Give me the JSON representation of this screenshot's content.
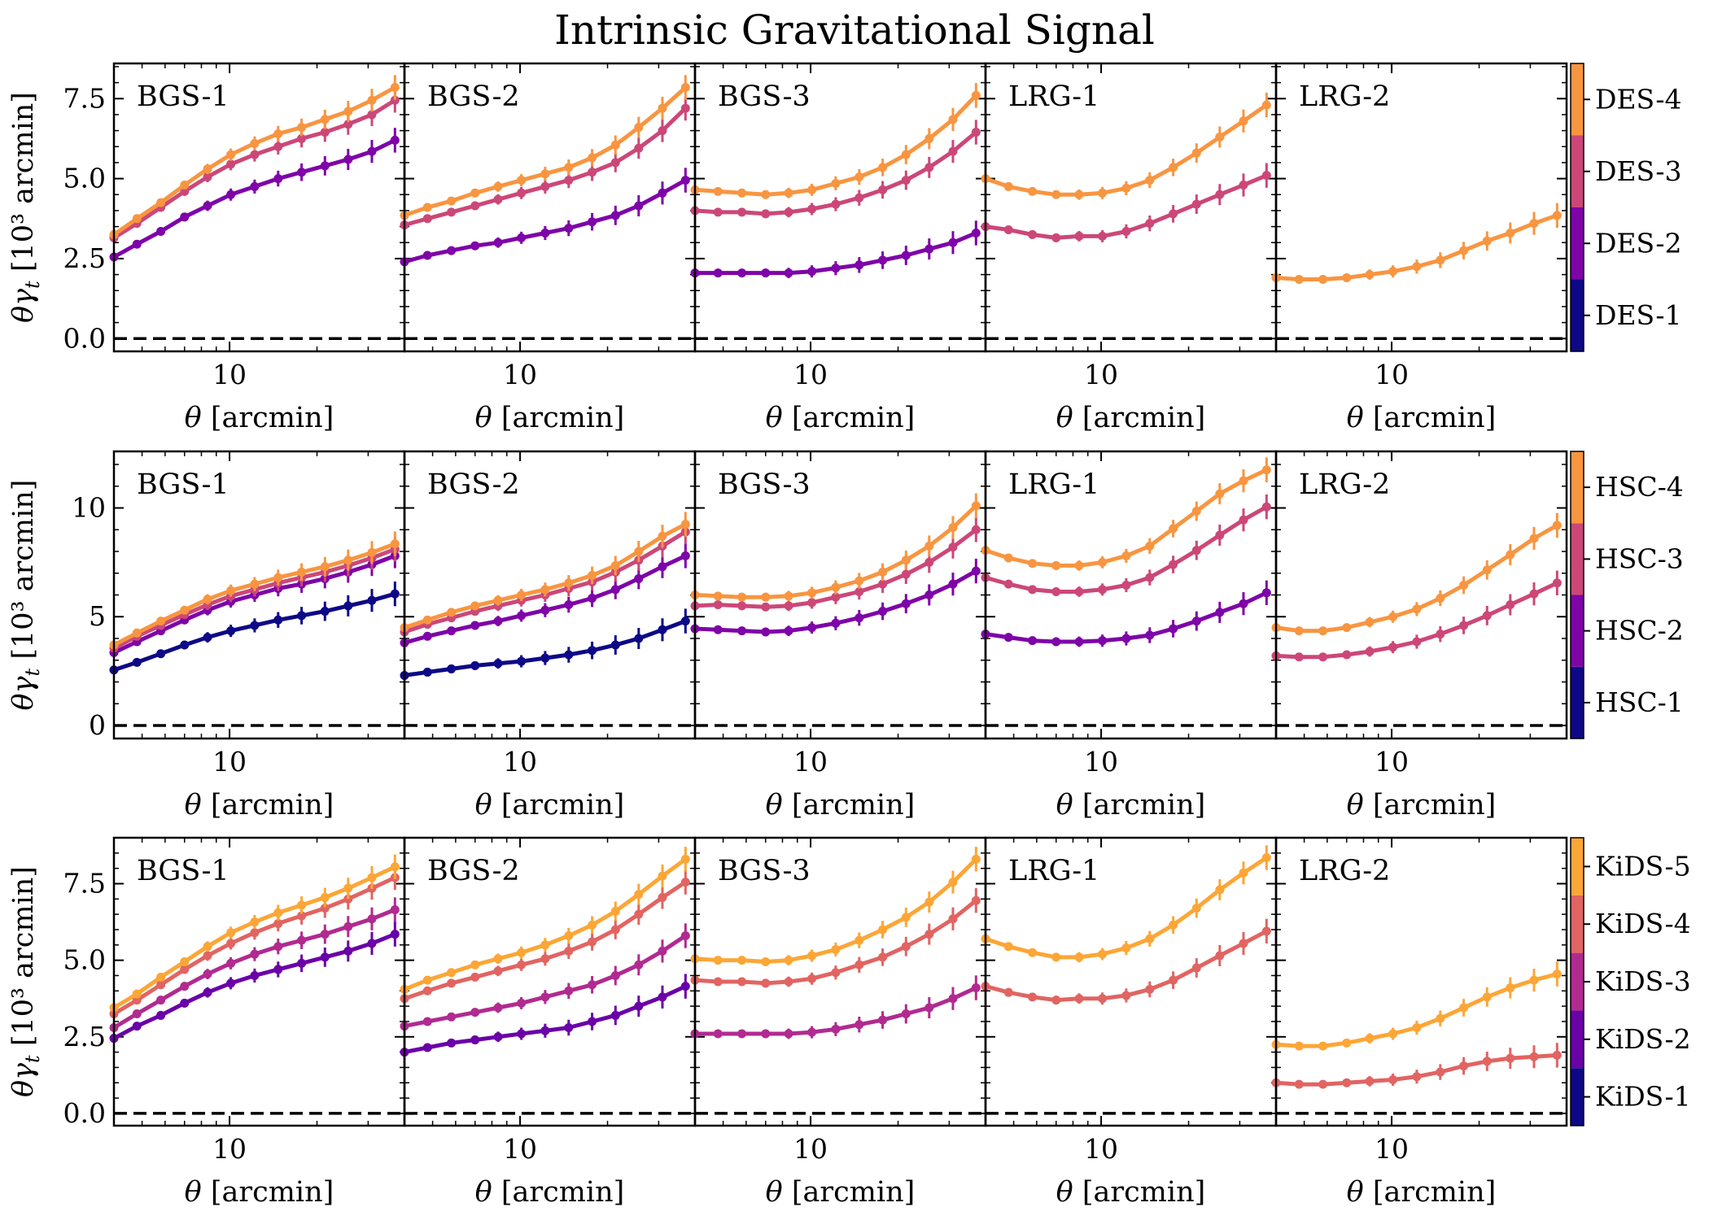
{
  "title": "Intrinsic Gravitational Signal",
  "x_axis_label": "θ [arcmin]",
  "y_axis_label": "θγt [10³ arcmin]",
  "lens_labels": [
    "BGS-1",
    "BGS-2",
    "BGS-3",
    "LRG-1",
    "LRG-2"
  ],
  "x_tick_label": "10",
  "rows": [
    {
      "ylim": [
        -0.4,
        8.6
      ],
      "yticks": [
        0.0,
        2.5,
        5.0,
        7.5
      ],
      "ytick_labels": [
        "0.0",
        "2.5",
        "5.0",
        "7.5"
      ],
      "colorbar": {
        "labels": [
          "DES-1",
          "DES-2",
          "DES-3",
          "DES-4"
        ],
        "colors": [
          "#0d0887",
          "#7e03a8",
          "#cc4778",
          "#f89540"
        ]
      }
    },
    {
      "ylim": [
        -0.6,
        12.6
      ],
      "yticks": [
        0,
        5,
        10
      ],
      "ytick_labels": [
        "0",
        "5",
        "10"
      ],
      "colorbar": {
        "labels": [
          "HSC-1",
          "HSC-2",
          "HSC-3",
          "HSC-4"
        ],
        "colors": [
          "#0d0887",
          "#7e03a8",
          "#cc4778",
          "#f89540"
        ]
      }
    },
    {
      "ylim": [
        -0.4,
        9.0
      ],
      "yticks": [
        0.0,
        2.5,
        5.0,
        7.5
      ],
      "ytick_labels": [
        "0.0",
        "2.5",
        "5.0",
        "7.5"
      ],
      "colorbar": {
        "labels": [
          "KiDS-1",
          "KiDS-2",
          "KiDS-3",
          "KiDS-4",
          "KiDS-5"
        ],
        "colors": [
          "#0d0887",
          "#6a00a8",
          "#b12a90",
          "#e16462",
          "#fca636"
        ]
      }
    }
  ],
  "chart_data": {
    "type": "line",
    "xscale": "log",
    "xlim": [
      4.0,
      40.0
    ],
    "x": [
      4.0,
      4.8,
      5.8,
      7.0,
      8.4,
      10.1,
      12.2,
      14.7,
      17.7,
      21.3,
      25.6,
      30.9,
      37.1
    ],
    "reference_line": {
      "y": 0,
      "style": "dashed",
      "color": "#000000"
    },
    "panels": [
      {
        "row": 0,
        "col": 0,
        "lens": "BGS-1",
        "series": [
          {
            "name": "DES-2",
            "color": "#7e03a8",
            "values": [
              2.55,
              2.95,
              3.35,
              3.8,
              4.15,
              4.5,
              4.75,
              5.0,
              5.2,
              5.4,
              5.6,
              5.85,
              6.2
            ]
          },
          {
            "name": "DES-3",
            "color": "#cc4778",
            "values": [
              3.15,
              3.6,
              4.1,
              4.6,
              5.05,
              5.45,
              5.75,
              6.0,
              6.25,
              6.45,
              6.7,
              7.0,
              7.45
            ]
          },
          {
            "name": "DES-4",
            "color": "#f89540",
            "values": [
              3.25,
              3.75,
              4.25,
              4.8,
              5.3,
              5.75,
              6.1,
              6.4,
              6.6,
              6.85,
              7.1,
              7.45,
              7.85
            ]
          }
        ]
      },
      {
        "row": 0,
        "col": 1,
        "lens": "BGS-2",
        "series": [
          {
            "name": "DES-2",
            "color": "#7e03a8",
            "values": [
              2.4,
              2.6,
              2.75,
              2.9,
              3.0,
              3.15,
              3.3,
              3.45,
              3.65,
              3.85,
              4.15,
              4.55,
              4.95
            ]
          },
          {
            "name": "DES-3",
            "color": "#cc4778",
            "values": [
              3.55,
              3.75,
              3.95,
              4.15,
              4.35,
              4.55,
              4.75,
              4.95,
              5.2,
              5.5,
              5.95,
              6.5,
              7.2
            ]
          },
          {
            "name": "DES-4",
            "color": "#f89540",
            "values": [
              3.85,
              4.1,
              4.3,
              4.55,
              4.75,
              4.95,
              5.15,
              5.35,
              5.65,
              6.05,
              6.6,
              7.2,
              7.85
            ]
          }
        ]
      },
      {
        "row": 0,
        "col": 2,
        "lens": "BGS-3",
        "series": [
          {
            "name": "DES-2",
            "color": "#7e03a8",
            "values": [
              2.05,
              2.05,
              2.05,
              2.05,
              2.05,
              2.1,
              2.2,
              2.3,
              2.45,
              2.6,
              2.8,
              3.0,
              3.3
            ]
          },
          {
            "name": "DES-3",
            "color": "#cc4778",
            "values": [
              4.0,
              3.95,
              3.95,
              3.9,
              3.95,
              4.05,
              4.2,
              4.4,
              4.65,
              4.95,
              5.35,
              5.85,
              6.45
            ]
          },
          {
            "name": "DES-4",
            "color": "#f89540",
            "values": [
              4.65,
              4.6,
              4.55,
              4.5,
              4.55,
              4.65,
              4.85,
              5.05,
              5.35,
              5.75,
              6.25,
              6.85,
              7.6
            ]
          }
        ]
      },
      {
        "row": 0,
        "col": 3,
        "lens": "LRG-1",
        "series": [
          {
            "name": "DES-3",
            "color": "#cc4778",
            "values": [
              3.5,
              3.4,
              3.25,
              3.15,
              3.2,
              3.2,
              3.35,
              3.6,
              3.9,
              4.2,
              4.5,
              4.8,
              5.1
            ]
          },
          {
            "name": "DES-4",
            "color": "#f89540",
            "values": [
              5.0,
              4.75,
              4.6,
              4.5,
              4.5,
              4.55,
              4.7,
              4.95,
              5.35,
              5.8,
              6.3,
              6.8,
              7.3
            ]
          }
        ]
      },
      {
        "row": 0,
        "col": 4,
        "lens": "LRG-2",
        "series": [
          {
            "name": "DES-4",
            "color": "#f89540",
            "values": [
              1.9,
              1.85,
              1.85,
              1.9,
              2.0,
              2.1,
              2.25,
              2.45,
              2.75,
              3.05,
              3.3,
              3.6,
              3.85
            ]
          }
        ]
      },
      {
        "row": 1,
        "col": 0,
        "lens": "BGS-1",
        "series": [
          {
            "name": "HSC-1",
            "color": "#0d0887",
            "values": [
              2.55,
              2.9,
              3.3,
              3.7,
              4.05,
              4.35,
              4.6,
              4.85,
              5.05,
              5.25,
              5.5,
              5.75,
              6.05
            ]
          },
          {
            "name": "HSC-2",
            "color": "#7e03a8",
            "values": [
              3.35,
              3.85,
              4.35,
              4.85,
              5.3,
              5.7,
              6.0,
              6.3,
              6.5,
              6.75,
              7.05,
              7.4,
              7.8
            ]
          },
          {
            "name": "HSC-3",
            "color": "#cc4778",
            "values": [
              3.55,
              4.1,
              4.6,
              5.1,
              5.55,
              5.95,
              6.25,
              6.55,
              6.8,
              7.05,
              7.35,
              7.7,
              8.1
            ]
          },
          {
            "name": "HSC-4",
            "color": "#f89540",
            "values": [
              3.7,
              4.25,
              4.8,
              5.3,
              5.8,
              6.2,
              6.5,
              6.8,
              7.05,
              7.3,
              7.6,
              7.95,
              8.35
            ]
          }
        ]
      },
      {
        "row": 1,
        "col": 1,
        "lens": "BGS-2",
        "series": [
          {
            "name": "HSC-1",
            "color": "#0d0887",
            "values": [
              2.3,
              2.45,
              2.6,
              2.75,
              2.85,
              2.95,
              3.1,
              3.25,
              3.45,
              3.7,
              4.0,
              4.4,
              4.8
            ]
          },
          {
            "name": "HSC-2",
            "color": "#7e03a8",
            "values": [
              3.8,
              4.1,
              4.35,
              4.6,
              4.8,
              5.05,
              5.3,
              5.55,
              5.85,
              6.25,
              6.75,
              7.3,
              7.8
            ]
          },
          {
            "name": "HSC-3",
            "color": "#cc4778",
            "values": [
              4.3,
              4.65,
              4.95,
              5.25,
              5.5,
              5.75,
              6.0,
              6.3,
              6.6,
              7.05,
              7.6,
              8.25,
              8.9
            ]
          },
          {
            "name": "HSC-4",
            "color": "#f89540",
            "values": [
              4.5,
              4.85,
              5.2,
              5.5,
              5.75,
              6.0,
              6.25,
              6.55,
              6.9,
              7.35,
              8.0,
              8.7,
              9.25
            ]
          }
        ]
      },
      {
        "row": 1,
        "col": 2,
        "lens": "BGS-3",
        "series": [
          {
            "name": "HSC-2",
            "color": "#7e03a8",
            "values": [
              4.45,
              4.4,
              4.35,
              4.3,
              4.35,
              4.5,
              4.7,
              4.95,
              5.25,
              5.6,
              6.0,
              6.5,
              7.1
            ]
          },
          {
            "name": "HSC-3",
            "color": "#cc4778",
            "values": [
              5.5,
              5.55,
              5.5,
              5.45,
              5.5,
              5.65,
              5.9,
              6.15,
              6.5,
              6.95,
              7.5,
              8.2,
              9.0
            ]
          },
          {
            "name": "HSC-4",
            "color": "#f89540",
            "values": [
              6.0,
              5.95,
              5.9,
              5.9,
              5.95,
              6.1,
              6.35,
              6.65,
              7.05,
              7.6,
              8.25,
              9.1,
              10.1
            ]
          }
        ]
      },
      {
        "row": 1,
        "col": 3,
        "lens": "LRG-1",
        "series": [
          {
            "name": "HSC-2",
            "color": "#7e03a8",
            "values": [
              4.2,
              4.05,
              3.9,
              3.85,
              3.85,
              3.9,
              4.0,
              4.15,
              4.45,
              4.8,
              5.2,
              5.6,
              6.1
            ]
          },
          {
            "name": "HSC-3",
            "color": "#cc4778",
            "values": [
              6.8,
              6.5,
              6.25,
              6.15,
              6.15,
              6.25,
              6.45,
              6.8,
              7.4,
              8.05,
              8.75,
              9.45,
              10.05
            ]
          },
          {
            "name": "HSC-4",
            "color": "#f89540",
            "values": [
              8.05,
              7.7,
              7.45,
              7.35,
              7.35,
              7.5,
              7.8,
              8.25,
              9.05,
              9.85,
              10.65,
              11.25,
              11.75
            ]
          }
        ]
      },
      {
        "row": 1,
        "col": 4,
        "lens": "LRG-2",
        "series": [
          {
            "name": "HSC-3",
            "color": "#cc4778",
            "values": [
              3.2,
              3.15,
              3.15,
              3.25,
              3.4,
              3.6,
              3.85,
              4.2,
              4.6,
              5.05,
              5.55,
              6.05,
              6.55
            ]
          },
          {
            "name": "HSC-4",
            "color": "#f89540",
            "values": [
              4.5,
              4.35,
              4.35,
              4.5,
              4.75,
              5.0,
              5.35,
              5.85,
              6.45,
              7.15,
              7.85,
              8.6,
              9.2
            ]
          }
        ]
      },
      {
        "row": 2,
        "col": 0,
        "lens": "BGS-1",
        "series": [
          {
            "name": "KiDS-2",
            "color": "#6a00a8",
            "values": [
              2.45,
              2.85,
              3.2,
              3.6,
              3.95,
              4.25,
              4.5,
              4.7,
              4.9,
              5.1,
              5.3,
              5.55,
              5.85
            ]
          },
          {
            "name": "KiDS-3",
            "color": "#b12a90",
            "values": [
              2.8,
              3.25,
              3.7,
              4.15,
              4.55,
              4.9,
              5.2,
              5.45,
              5.65,
              5.85,
              6.1,
              6.35,
              6.65
            ]
          },
          {
            "name": "KiDS-4",
            "color": "#e16462",
            "values": [
              3.25,
              3.7,
              4.2,
              4.7,
              5.15,
              5.55,
              5.9,
              6.2,
              6.45,
              6.7,
              7.0,
              7.35,
              7.7
            ]
          },
          {
            "name": "KiDS-5",
            "color": "#fca636",
            "values": [
              3.45,
              3.9,
              4.45,
              4.95,
              5.45,
              5.9,
              6.25,
              6.55,
              6.8,
              7.05,
              7.35,
              7.7,
              8.05
            ]
          }
        ]
      },
      {
        "row": 2,
        "col": 1,
        "lens": "BGS-2",
        "series": [
          {
            "name": "KiDS-2",
            "color": "#6a00a8",
            "values": [
              2.0,
              2.15,
              2.3,
              2.4,
              2.5,
              2.6,
              2.7,
              2.8,
              3.0,
              3.2,
              3.5,
              3.8,
              4.15
            ]
          },
          {
            "name": "KiDS-3",
            "color": "#b12a90",
            "values": [
              2.85,
              3.0,
              3.15,
              3.3,
              3.45,
              3.6,
              3.8,
              4.0,
              4.2,
              4.5,
              4.85,
              5.3,
              5.8
            ]
          },
          {
            "name": "KiDS-4",
            "color": "#e16462",
            "values": [
              3.75,
              4.0,
              4.25,
              4.45,
              4.65,
              4.85,
              5.05,
              5.3,
              5.6,
              6.0,
              6.5,
              7.05,
              7.55
            ]
          },
          {
            "name": "KiDS-5",
            "color": "#fca636",
            "values": [
              4.05,
              4.35,
              4.6,
              4.85,
              5.05,
              5.25,
              5.5,
              5.8,
              6.15,
              6.6,
              7.15,
              7.75,
              8.3
            ]
          }
        ]
      },
      {
        "row": 2,
        "col": 2,
        "lens": "BGS-3",
        "series": [
          {
            "name": "KiDS-3",
            "color": "#b12a90",
            "values": [
              2.6,
              2.6,
              2.6,
              2.6,
              2.6,
              2.65,
              2.75,
              2.9,
              3.05,
              3.25,
              3.45,
              3.75,
              4.1
            ]
          },
          {
            "name": "KiDS-4",
            "color": "#e16462",
            "values": [
              4.35,
              4.3,
              4.3,
              4.25,
              4.3,
              4.4,
              4.6,
              4.85,
              5.1,
              5.45,
              5.85,
              6.35,
              6.95
            ]
          },
          {
            "name": "KiDS-5",
            "color": "#fca636",
            "values": [
              5.05,
              5.0,
              5.0,
              4.95,
              5.0,
              5.15,
              5.35,
              5.65,
              6.0,
              6.4,
              6.9,
              7.55,
              8.3
            ]
          }
        ]
      },
      {
        "row": 2,
        "col": 3,
        "lens": "LRG-1",
        "series": [
          {
            "name": "KiDS-4",
            "color": "#e16462",
            "values": [
              4.15,
              3.95,
              3.8,
              3.7,
              3.75,
              3.75,
              3.85,
              4.05,
              4.35,
              4.75,
              5.15,
              5.55,
              5.95
            ]
          },
          {
            "name": "KiDS-5",
            "color": "#fca636",
            "values": [
              5.7,
              5.45,
              5.25,
              5.1,
              5.1,
              5.2,
              5.4,
              5.7,
              6.15,
              6.7,
              7.3,
              7.85,
              8.35
            ]
          }
        ]
      },
      {
        "row": 2,
        "col": 4,
        "lens": "LRG-2",
        "series": [
          {
            "name": "KiDS-4",
            "color": "#e16462",
            "values": [
              1.0,
              0.95,
              0.95,
              1.0,
              1.05,
              1.1,
              1.2,
              1.35,
              1.55,
              1.7,
              1.8,
              1.85,
              1.9
            ]
          },
          {
            "name": "KiDS-5",
            "color": "#fca636",
            "values": [
              2.25,
              2.2,
              2.2,
              2.3,
              2.45,
              2.6,
              2.8,
              3.1,
              3.45,
              3.8,
              4.1,
              4.35,
              4.55
            ]
          }
        ]
      }
    ]
  }
}
